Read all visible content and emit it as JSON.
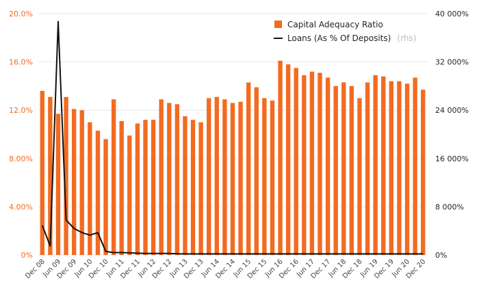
{
  "chart_data": {
    "type": "bar",
    "categories": [
      "Dec 08",
      "Mar 09",
      "Jun 09",
      "Sep 09",
      "Dec 09",
      "Mar 10",
      "Jun 10",
      "Sep 10",
      "Dec 10",
      "Mar 11",
      "Jun 11",
      "Sep 11",
      "Dec 11",
      "Mar 12",
      "Jun 12",
      "Sep 12",
      "Dec 12",
      "Mar 13",
      "Jun 13",
      "Sep 13",
      "Dec 13",
      "Mar 14",
      "Jun 14",
      "Sep 14",
      "Dec 14",
      "Mar 15",
      "Jun 15",
      "Sep 15",
      "Dec 15",
      "Mar 16",
      "Jun 16",
      "Sep 16",
      "Dec 16",
      "Mar 17",
      "Jun 17",
      "Sep 17",
      "Dec 17",
      "Mar 18",
      "Jun 18",
      "Sep 18",
      "Dec 18",
      "Mar 19",
      "Jun 19",
      "Sep 19",
      "Dec 19",
      "Mar 20",
      "Jun 20",
      "Sep 20",
      "Dec 20"
    ],
    "x_tick_labels": [
      "Dec 08",
      "Jun 09",
      "Dec 09",
      "Jun 10",
      "Dec 10",
      "Jun 11",
      "Dec 11",
      "Jun 12",
      "Dec 12",
      "Jun 13",
      "Dec 13",
      "Jun 14",
      "Dec 14",
      "Jun 15",
      "Dec 15",
      "Jun 16",
      "Dec 16",
      "Jun 17",
      "Dec 17",
      "Jun 18",
      "Dec 18",
      "Jun 19",
      "Dec 19",
      "Jun 20",
      "Dec 20"
    ],
    "series": [
      {
        "name": "Capital Adequacy Ratio",
        "type": "bar",
        "axis": "left",
        "color": "#f26b21",
        "values": [
          13.6,
          13.1,
          11.7,
          13.1,
          12.1,
          12.0,
          11.0,
          10.3,
          9.6,
          12.9,
          11.1,
          9.9,
          10.9,
          11.2,
          11.2,
          12.9,
          12.6,
          12.5,
          11.5,
          11.2,
          11.0,
          13.0,
          13.1,
          12.9,
          12.6,
          12.7,
          14.3,
          13.9,
          13.0,
          12.8,
          16.1,
          15.8,
          15.5,
          14.9,
          15.2,
          15.1,
          14.7,
          14.0,
          14.3,
          14.0,
          13.0,
          14.3,
          14.9,
          14.8,
          14.4,
          14.4,
          14.2,
          14.7,
          13.7
        ]
      },
      {
        "name": "Loans (As % Of Deposits)",
        "name_suffix": "(rhs)",
        "type": "line",
        "axis": "right",
        "color": "#111111",
        "values": [
          4900,
          1500,
          38700,
          5800,
          4400,
          3700,
          3300,
          3700,
          600,
          400,
          400,
          350,
          300,
          250,
          250,
          250,
          250,
          200,
          180,
          180,
          180,
          180,
          180,
          180,
          180,
          180,
          180,
          180,
          180,
          180,
          180,
          180,
          180,
          180,
          180,
          180,
          180,
          180,
          180,
          180,
          180,
          180,
          180,
          180,
          180,
          180,
          180,
          180,
          180
        ]
      }
    ],
    "y_left": {
      "ylim": [
        0,
        20
      ],
      "ticks": [
        "0%",
        "4.00%",
        "8.00%",
        "12.0%",
        "16.0%",
        "20.0%"
      ]
    },
    "y_right": {
      "ylim": [
        0,
        40000
      ],
      "ticks": [
        "0%",
        "8 000%",
        "16 000%",
        "24 000%",
        "32 000%",
        "40 000%"
      ]
    },
    "grid": true,
    "legend_position": "top-right"
  }
}
